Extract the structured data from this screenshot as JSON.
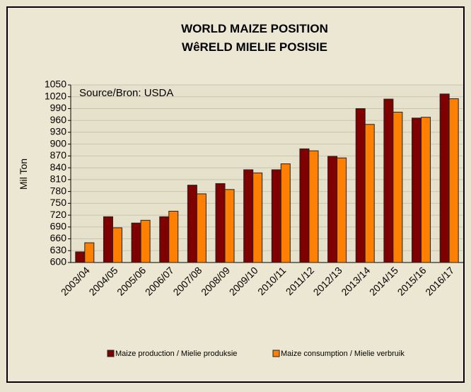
{
  "chart_data": {
    "type": "bar",
    "title": "WORLD MAIZE POSITION",
    "subtitle": "WêRELD MIELIE POSISIE",
    "annotation": "Source/Bron: USDA",
    "y_label": "Mil Ton",
    "categories": [
      "2003/04",
      "2004/05",
      "2005/06",
      "2006/07",
      "2007/08",
      "2008/09",
      "2009/10",
      "2010/11",
      "2011/12",
      "2012/13",
      "2013/14",
      "2014/15",
      "2015/16",
      "2016/17"
    ],
    "series": [
      {
        "name": "Maize production / Mielie produksie",
        "color": "#7f0000",
        "values": [
          627,
          716,
          700,
          716,
          796,
          800,
          835,
          835,
          888,
          869,
          990,
          1014,
          966,
          1027
        ]
      },
      {
        "name": "Maize consumption / Mielie verbruik",
        "color": "#ff7f00",
        "values": [
          650,
          688,
          707,
          730,
          774,
          785,
          827,
          850,
          883,
          865,
          950,
          981,
          968,
          1015
        ]
      }
    ],
    "ylim": [
      600,
      1050
    ],
    "yticks": [
      600,
      630,
      660,
      690,
      720,
      750,
      780,
      810,
      840,
      870,
      900,
      930,
      960,
      990,
      1020,
      1050
    ],
    "grid": true,
    "legend": "bottom"
  }
}
